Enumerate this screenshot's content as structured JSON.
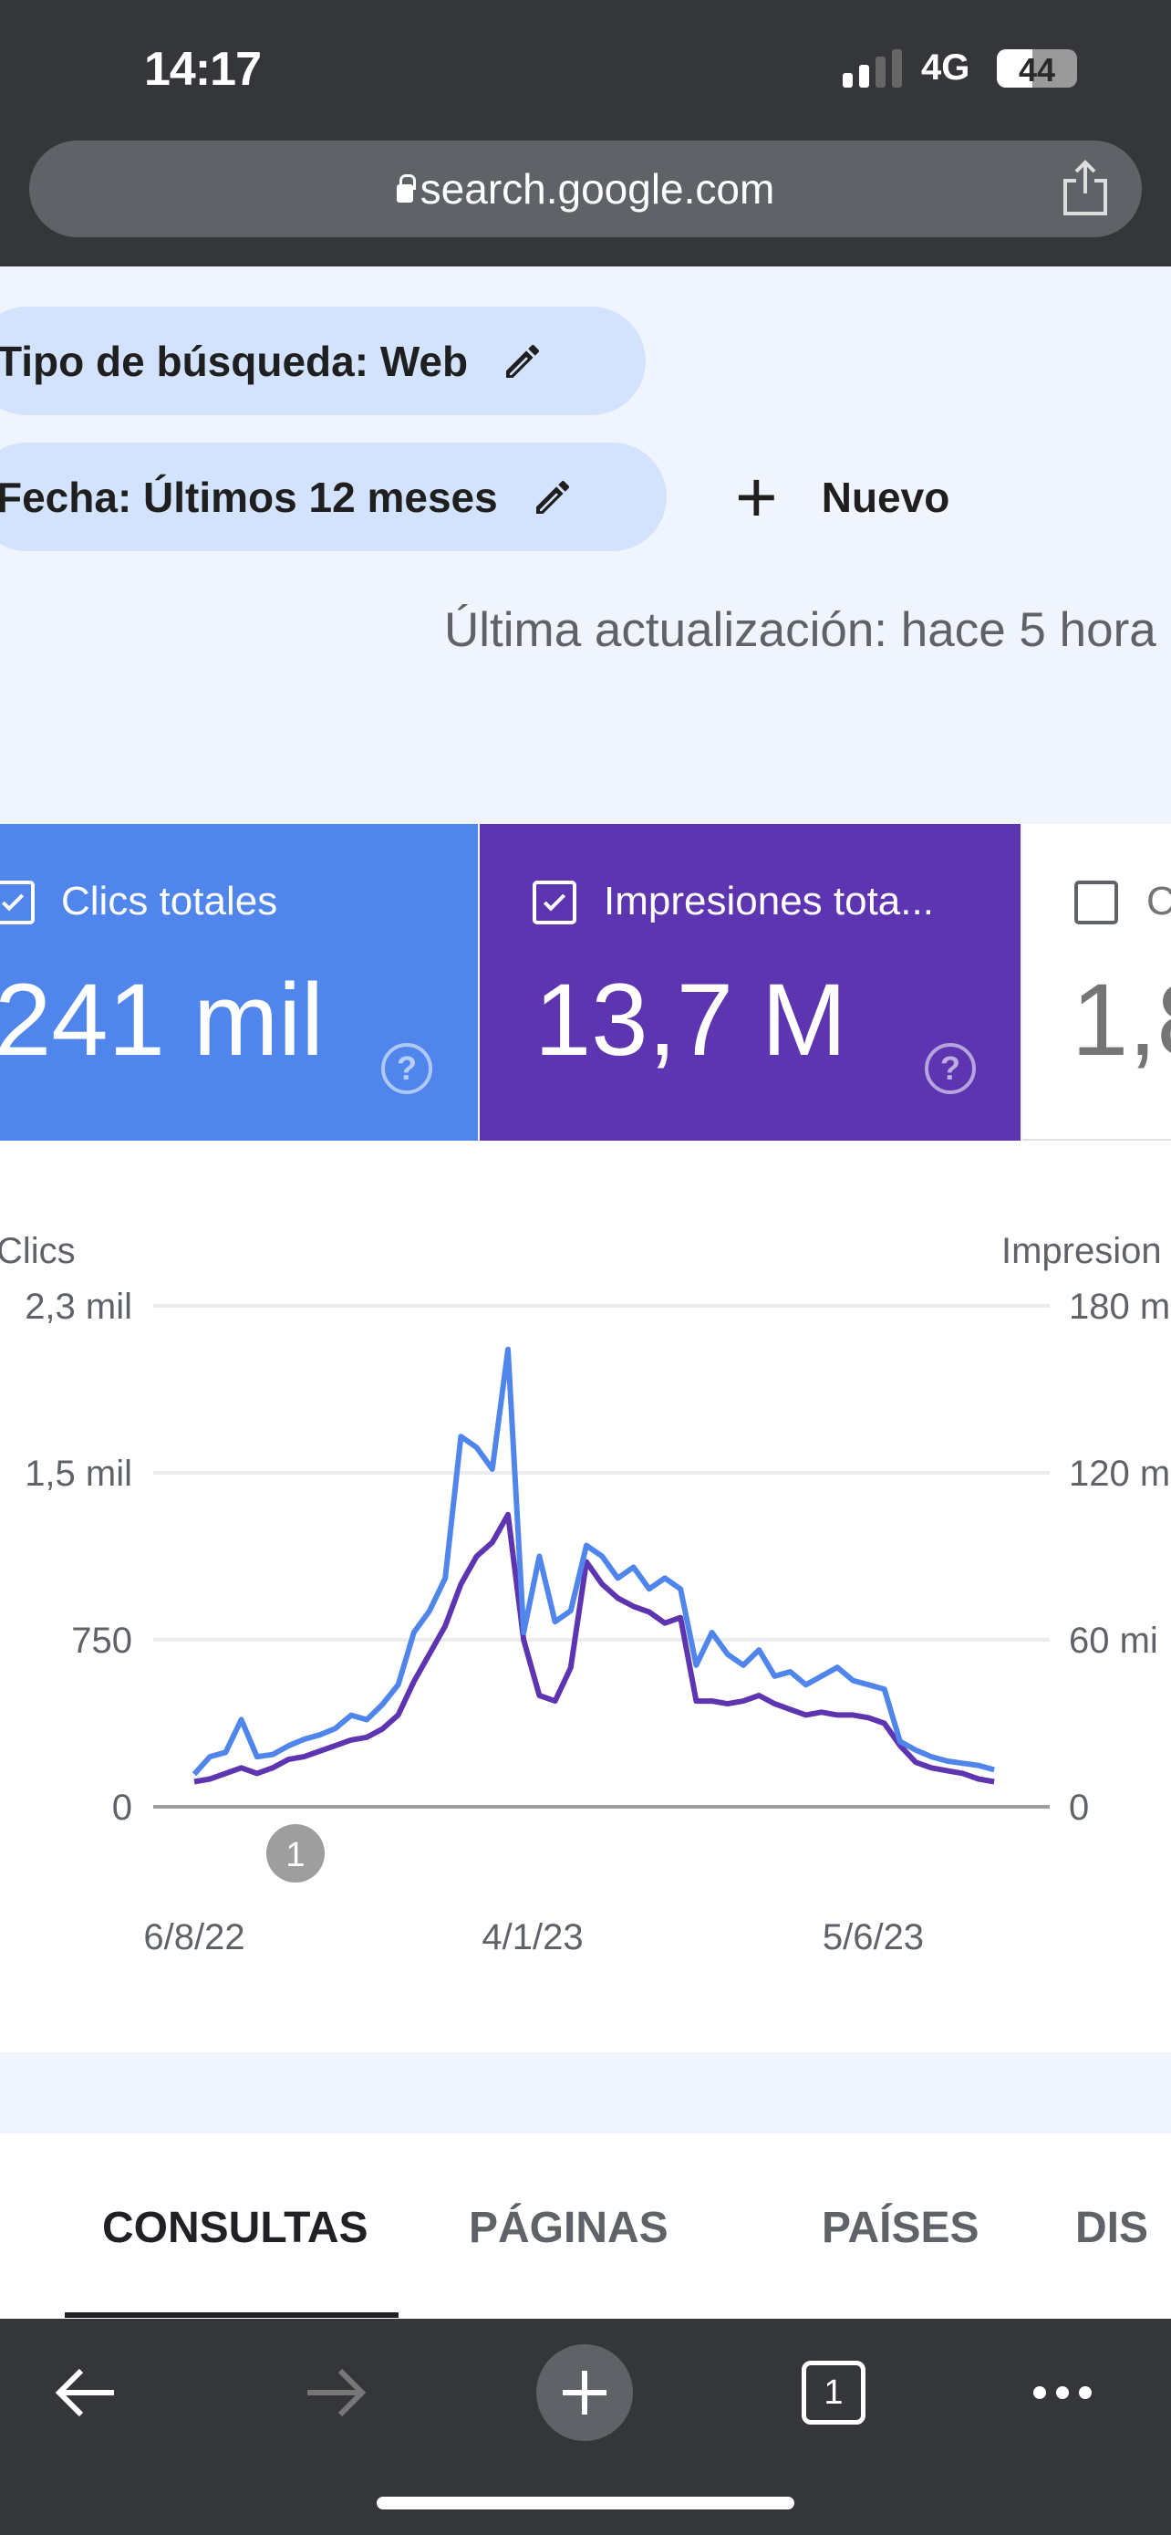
{
  "status_bar": {
    "time": "14:17",
    "network": "4G",
    "battery": "44",
    "battery_level": 0.44
  },
  "browser": {
    "url": "search.google.com",
    "share_icon": "share-icon",
    "lock_icon": "lock-icon"
  },
  "filters": {
    "chips": [
      {
        "label": "Tipo de búsqueda: Web",
        "icon": "pencil-icon"
      },
      {
        "label": "Fecha: Últimos 12 meses",
        "icon": "pencil-icon"
      }
    ],
    "new_label": "Nuevo"
  },
  "last_update": "Última actualización: hace 5 hora",
  "metrics": [
    {
      "label": "Clics totales",
      "value": "241 mil",
      "checked": true,
      "color": "#5086ec"
    },
    {
      "label": "Impresiones tota...",
      "value": "13,7 M",
      "checked": true,
      "color": "#5e35b1"
    },
    {
      "label": "C",
      "value": "1,8",
      "checked": false
    }
  ],
  "chart_data": {
    "type": "line",
    "left_axis_title": "Clics",
    "right_axis_title": "Impresion",
    "left_ticks": [
      "0",
      "750",
      "1,5 mil",
      "2,3 mil"
    ],
    "right_ticks": [
      "0",
      "60 mi",
      "120 m",
      "180 m"
    ],
    "left_ylim": [
      0,
      2300
    ],
    "right_ylim": [
      0,
      180000000
    ],
    "x_ticks": [
      "6/8/22",
      "4/1/23",
      "5/6/23"
    ],
    "grid": true,
    "annotation": "1",
    "x": [
      "6/8/22",
      "13/8/22",
      "20/8/22",
      "27/8/22",
      "3/9/22",
      "10/9/22",
      "17/9/22",
      "24/9/22",
      "1/10/22",
      "8/10/22",
      "15/10/22",
      "22/10/22",
      "29/10/22",
      "5/11/22",
      "12/11/22",
      "19/11/22",
      "26/11/22",
      "3/12/22",
      "10/12/22",
      "17/12/22",
      "24/12/22",
      "31/12/22",
      "7/1/23",
      "14/1/23",
      "21/1/23",
      "28/1/23",
      "4/2/23",
      "11/2/23",
      "18/2/23",
      "25/2/23",
      "4/3/23",
      "11/3/23",
      "18/3/23",
      "25/3/23",
      "1/4/23",
      "8/4/23",
      "15/4/23",
      "22/4/23",
      "29/4/23",
      "6/5/23",
      "13/5/23",
      "20/5/23",
      "27/5/23",
      "3/6/23",
      "10/6/23",
      "17/6/23",
      "24/6/23",
      "1/7/23",
      "8/7/23",
      "15/7/23",
      "22/7/23",
      "29/7/23"
    ],
    "series": [
      {
        "axis": "left",
        "color": "#5086ec",
        "values": [
          150,
          230,
          250,
          400,
          230,
          240,
          280,
          310,
          330,
          360,
          420,
          400,
          470,
          560,
          800,
          900,
          1050,
          1700,
          1650,
          1550,
          2100,
          800,
          1150,
          850,
          900,
          1200,
          1150,
          1050,
          1100,
          1000,
          1050,
          1000,
          650,
          800,
          700,
          650,
          720,
          600,
          620,
          560,
          600,
          640,
          580,
          560,
          540,
          300,
          260,
          230,
          210,
          200,
          190,
          170
        ]
      },
      {
        "axis": "right",
        "color": "#5e35b1",
        "values": [
          9000000,
          10000000,
          12000000,
          14000000,
          12000000,
          14000000,
          17000000,
          18000000,
          20000000,
          22000000,
          24000000,
          25000000,
          28000000,
          33000000,
          45000000,
          55000000,
          65000000,
          80000000,
          90000000,
          95000000,
          105000000,
          60000000,
          40000000,
          38000000,
          50000000,
          88000000,
          80000000,
          75000000,
          72000000,
          70000000,
          66000000,
          68000000,
          38000000,
          38000000,
          37000000,
          38000000,
          40000000,
          37000000,
          35000000,
          33000000,
          34000000,
          33000000,
          33000000,
          32000000,
          30000000,
          22000000,
          16000000,
          14000000,
          13000000,
          12000000,
          10000000,
          9000000
        ]
      }
    ]
  },
  "tabs": [
    {
      "label": "CONSULTAS",
      "active": true
    },
    {
      "label": "PÁGINAS"
    },
    {
      "label": "PAÍSES"
    },
    {
      "label": "DIS"
    }
  ],
  "toolbar": {
    "tab_count": "1"
  }
}
